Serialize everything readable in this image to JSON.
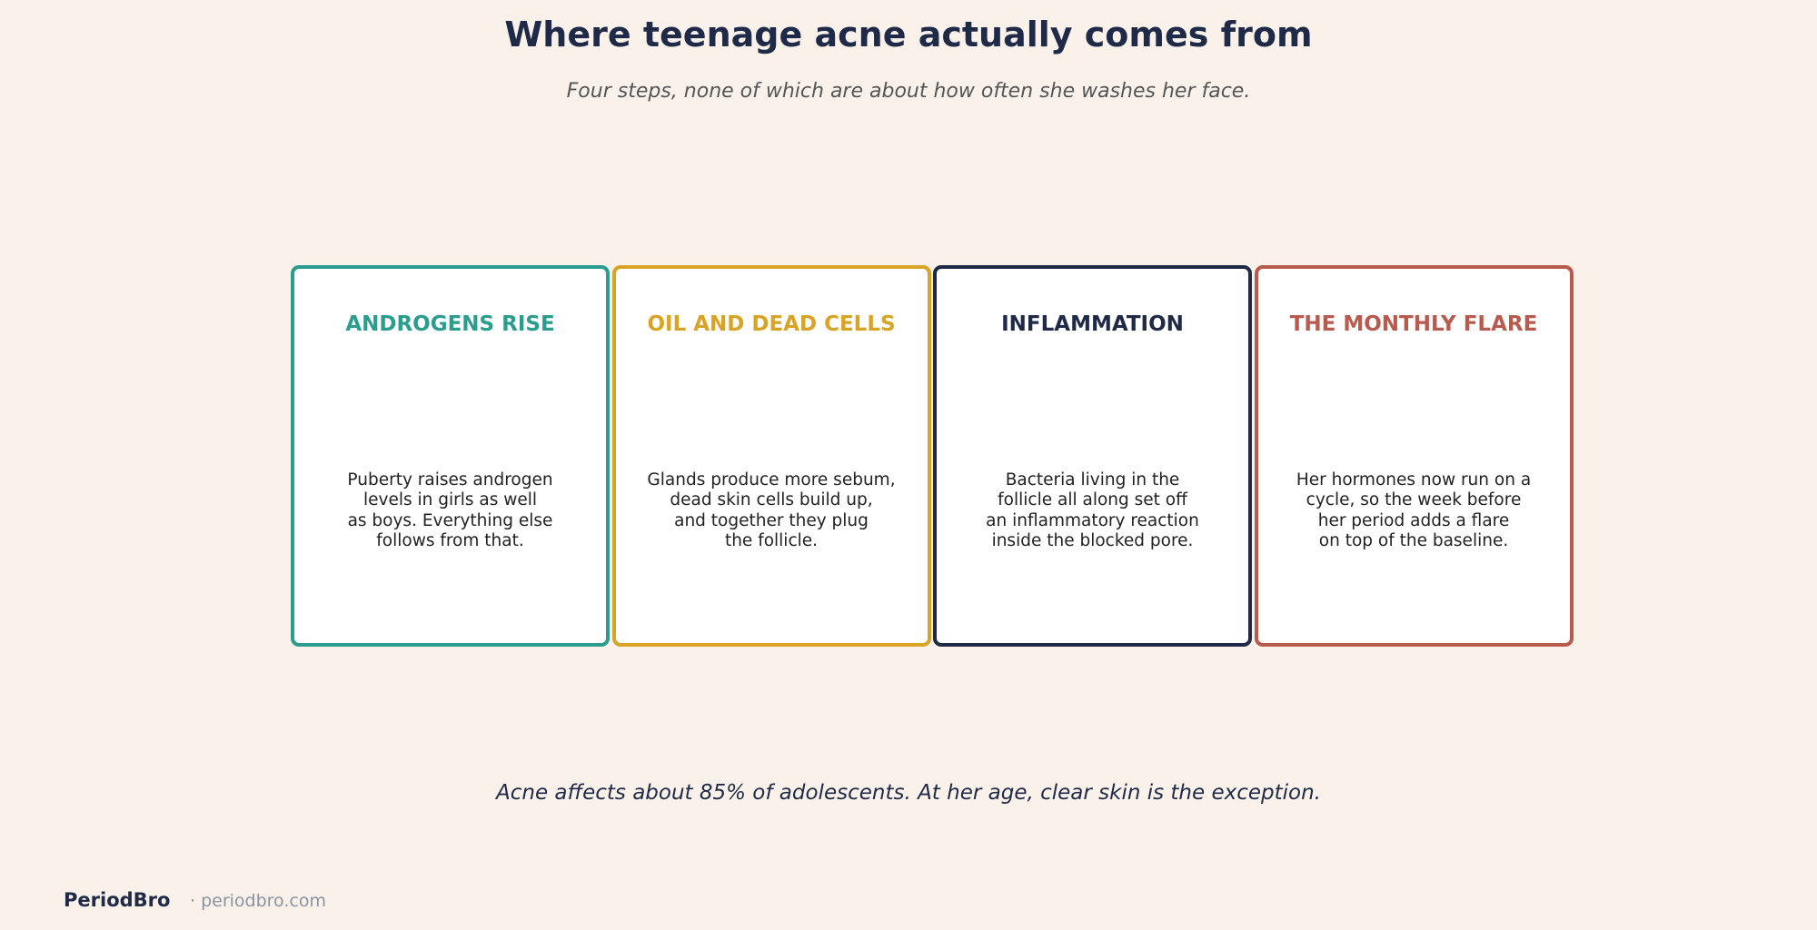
{
  "header": {
    "title": "Where teenage acne actually comes from",
    "subtitle": "Four steps, none of which are about how often she washes her face."
  },
  "cards": [
    {
      "title": "ANDROGENS RISE",
      "color": "#2a9d8f",
      "lines": [
        "Puberty raises androgen",
        "levels in girls as well",
        "as boys. Everything else",
        "follows from that."
      ]
    },
    {
      "title": "OIL AND DEAD CELLS",
      "color": "#d9a326",
      "lines": [
        "Glands produce more sebum,",
        "dead skin cells build up,",
        "and together they plug",
        "the follicle."
      ]
    },
    {
      "title": "INFLAMMATION",
      "color": "#1e2a47",
      "lines": [
        "Bacteria living in the",
        "follicle all along set off",
        "an inflammatory reaction",
        "inside the blocked pore."
      ]
    },
    {
      "title": "THE MONTHLY FLARE",
      "color": "#b85a4e",
      "lines": [
        "Her hormones now run on a",
        "cycle, so the week before",
        "her period adds a flare",
        "on top of the baseline."
      ]
    }
  ],
  "note": "Acne affects about 85% of adolescents. At her age, clear skin is the exception.",
  "footer": {
    "brand": "PeriodBro",
    "url": "· periodbro.com"
  }
}
